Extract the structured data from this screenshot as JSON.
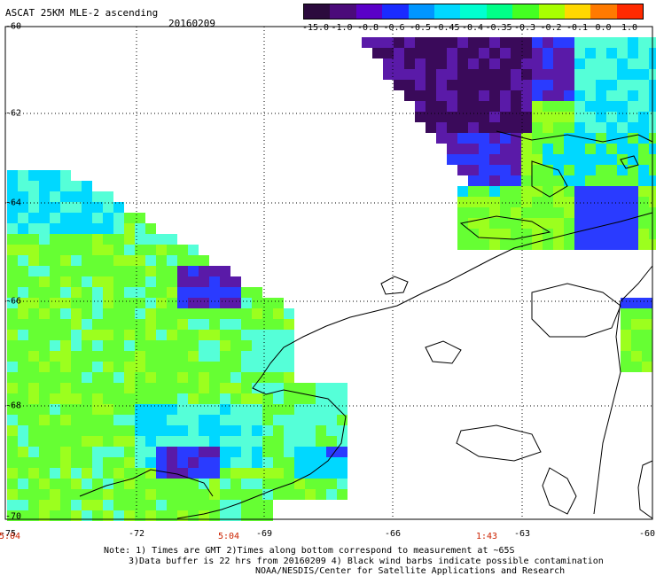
{
  "header": {
    "title": "ASCAT 25KM MLE-2 ascending",
    "date": "20160209"
  },
  "colorbar": {
    "labels": [
      "-15.0",
      "-1.0",
      "-0.8",
      "-0.6",
      "-0.5",
      "-0.45",
      "-0.4",
      "-0.35",
      "-0.3",
      "-0.2",
      "-0.1",
      "0.0",
      "1.0"
    ],
    "colors": [
      "#2b0a3d",
      "#4b0b7a",
      "#5a00c8",
      "#1a2bff",
      "#0096ff",
      "#00d8ff",
      "#00ffd0",
      "#00ff88",
      "#44ff22",
      "#a8ff00",
      "#ffd800",
      "#ff7a00",
      "#ff2a00"
    ]
  },
  "map": {
    "lat_labels": [
      "-60",
      "-62",
      "-64",
      "-66",
      "-68",
      "-70"
    ],
    "lon_labels": [
      "-75",
      "-72",
      "-69",
      "-66",
      "-63",
      "-60"
    ],
    "time_labels": [
      "5:04",
      "5:04",
      "1:43"
    ],
    "colors": {
      "deep": "#3a0a5a",
      "purple": "#5a1aa8",
      "blue": "#2a3bff",
      "cyan": "#00d8ff",
      "aqua": "#55ffd8",
      "green": "#66ff33",
      "lime": "#9cff1e",
      "coast": "#000000"
    }
  },
  "notes": {
    "line1": "Note: 1) Times are GMT 2)Times along bottom correspond to measurement at ~65S",
    "line2": "3)Data buffer is 22 hrs from 20160209 4) Black wind barbs indicate possible contamination",
    "line3": "NOAA/NESDIS/Center for Satellite Applications and Research"
  }
}
